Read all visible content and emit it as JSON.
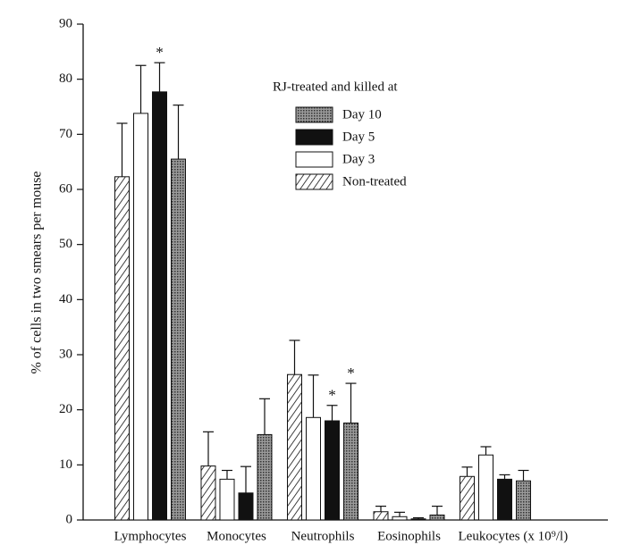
{
  "chart_data": {
    "type": "bar",
    "ylabel": "% of cells in two smears per mouse",
    "categories": [
      "Lymphocytes",
      "Monocytes",
      "Neutrophils",
      "Eosinophils",
      "Leukocytes (x 10⁹/l)"
    ],
    "legend_title": "RJ-treated and killed at",
    "series": [
      {
        "name": "Non-treated",
        "fill": "hatch",
        "values": [
          62.3,
          9.8,
          26.4,
          1.5,
          7.9
        ],
        "errors": [
          9.7,
          6.2,
          6.2,
          1.0,
          1.7
        ]
      },
      {
        "name": "Day 3",
        "fill": "white",
        "values": [
          73.8,
          7.4,
          18.6,
          0.6,
          11.8
        ],
        "errors": [
          8.7,
          1.6,
          7.7,
          0.8,
          1.5
        ]
      },
      {
        "name": "Day 5",
        "fill": "black",
        "values": [
          77.7,
          4.9,
          18.0,
          0.2,
          7.4
        ],
        "errors": [
          5.3,
          4.8,
          2.8,
          0.2,
          0.8
        ]
      },
      {
        "name": "Day 10",
        "fill": "dots",
        "values": [
          65.5,
          15.5,
          17.6,
          0.9,
          7.1
        ],
        "errors": [
          9.8,
          6.5,
          7.2,
          1.6,
          1.9
        ]
      }
    ],
    "annotations": [
      {
        "text": "*",
        "category": "Lymphocytes",
        "series": "Day 5"
      },
      {
        "text": "*",
        "category": "Neutrophils",
        "series": "Day 5"
      },
      {
        "text": "*",
        "category": "Neutrophils",
        "series": "Day 10"
      }
    ],
    "ylim": [
      0,
      90
    ],
    "yticks": [
      0,
      10,
      20,
      30,
      40,
      50,
      60,
      70,
      80,
      90
    ],
    "grid": false
  }
}
